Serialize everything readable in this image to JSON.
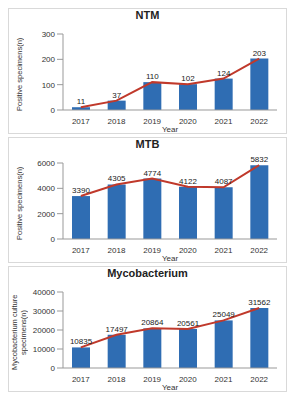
{
  "chart_data": [
    {
      "type": "bar",
      "title": "NTM",
      "x_label": "Year",
      "y_label": "Positive specimens(n)",
      "categories": [
        "2017",
        "2018",
        "2019",
        "2020",
        "2021",
        "2022"
      ],
      "series": [
        {
          "type": "bar",
          "color": "#2f6db3",
          "values": [
            11,
            37,
            110,
            102,
            124,
            203
          ]
        },
        {
          "type": "line",
          "color": "#c0392b",
          "marker": "none",
          "values": [
            11,
            37,
            110,
            102,
            124,
            203
          ]
        }
      ],
      "ylim": [
        0,
        300
      ],
      "yticks": [
        0,
        100,
        200,
        300
      ],
      "grid": false,
      "data_labels": true
    },
    {
      "type": "bar",
      "title": "MTB",
      "x_label": "Year",
      "y_label": "Positive specimens(n)",
      "categories": [
        "2017",
        "2018",
        "2019",
        "2020",
        "2021",
        "2022"
      ],
      "series": [
        {
          "type": "bar",
          "color": "#2f6db3",
          "values": [
            3390,
            4305,
            4774,
            4122,
            4087,
            5832
          ]
        },
        {
          "type": "line",
          "color": "#c0392b",
          "marker": "none",
          "values": [
            3390,
            4305,
            4774,
            4122,
            4087,
            5832
          ]
        }
      ],
      "ylim": [
        0,
        6000
      ],
      "yticks": [
        0,
        2000,
        4000,
        6000
      ],
      "grid": false,
      "data_labels": true
    },
    {
      "type": "bar",
      "title": "Mycobacterium",
      "x_label": "Year",
      "y_label": "Mycobacterium culture specimens(n)",
      "categories": [
        "2017",
        "2018",
        "2019",
        "2020",
        "2021",
        "2022"
      ],
      "series": [
        {
          "type": "bar",
          "color": "#2f6db3",
          "values": [
            10835,
            17497,
            20864,
            20561,
            25049,
            31562
          ]
        },
        {
          "type": "line",
          "color": "#c0392b",
          "marker": "none",
          "values": [
            10835,
            17497,
            20864,
            20561,
            25049,
            31562
          ]
        }
      ],
      "ylim": [
        0,
        40000
      ],
      "yticks": [
        0,
        10000,
        20000,
        30000,
        40000
      ],
      "grid": false,
      "data_labels": true
    }
  ]
}
